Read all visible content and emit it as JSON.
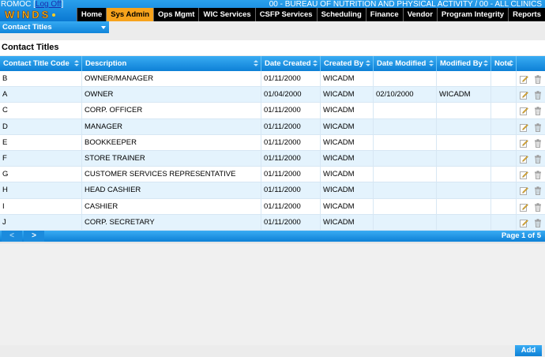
{
  "header": {
    "user": "ROMOC",
    "logoff_open": "[",
    "logoff_label": "Log Off",
    "logoff_close": "]",
    "agency": "00 - BUREAU OF NUTRITION AND PHYSICAL ACTIVITY / 00 - ALL CLINICS",
    "logo_text": "WINDS"
  },
  "nav": {
    "items": [
      "Home",
      "Sys Admin",
      "Ops Mgmt",
      "WIC Services",
      "CSFP Services",
      "Scheduling",
      "Finance",
      "Vendor",
      "Program Integrity",
      "Reports"
    ],
    "active": "Sys Admin"
  },
  "submenu": {
    "selected": "Contact Titles"
  },
  "page": {
    "title": "Contact Titles"
  },
  "table": {
    "columns": [
      "Contact Title Code",
      "Description",
      "Date Created",
      "Created By",
      "Date Modified",
      "Modified By",
      "Note"
    ],
    "rows": [
      [
        "B",
        "OWNER/MANAGER",
        "01/11/2000",
        "WICADM",
        "",
        "",
        ""
      ],
      [
        "A",
        "OWNER",
        "01/04/2000",
        "WICADM",
        "02/10/2000",
        "WICADM",
        ""
      ],
      [
        "C",
        "CORP. OFFICER",
        "01/11/2000",
        "WICADM",
        "",
        "",
        ""
      ],
      [
        "D",
        "MANAGER",
        "01/11/2000",
        "WICADM",
        "",
        "",
        ""
      ],
      [
        "E",
        "BOOKKEEPER",
        "01/11/2000",
        "WICADM",
        "",
        "",
        ""
      ],
      [
        "F",
        "STORE TRAINER",
        "01/11/2000",
        "WICADM",
        "",
        "",
        ""
      ],
      [
        "G",
        "CUSTOMER SERVICES REPRESENTATIVE",
        "01/11/2000",
        "WICADM",
        "",
        "",
        ""
      ],
      [
        "H",
        "HEAD CASHIER",
        "01/11/2000",
        "WICADM",
        "",
        "",
        ""
      ],
      [
        "I",
        "CASHIER",
        "01/11/2000",
        "WICADM",
        "",
        "",
        ""
      ],
      [
        "J",
        "CORP. SECRETARY",
        "01/11/2000",
        "WICADM",
        "",
        "",
        ""
      ]
    ]
  },
  "pager": {
    "prev": "<",
    "next": ">",
    "info": "Page 1 of 5"
  },
  "actions": {
    "add_label": "Add"
  },
  "colors": {
    "accent": "#0a78d2",
    "active_nav": "#f7a31c",
    "row_alt": "#e4f3fd"
  }
}
